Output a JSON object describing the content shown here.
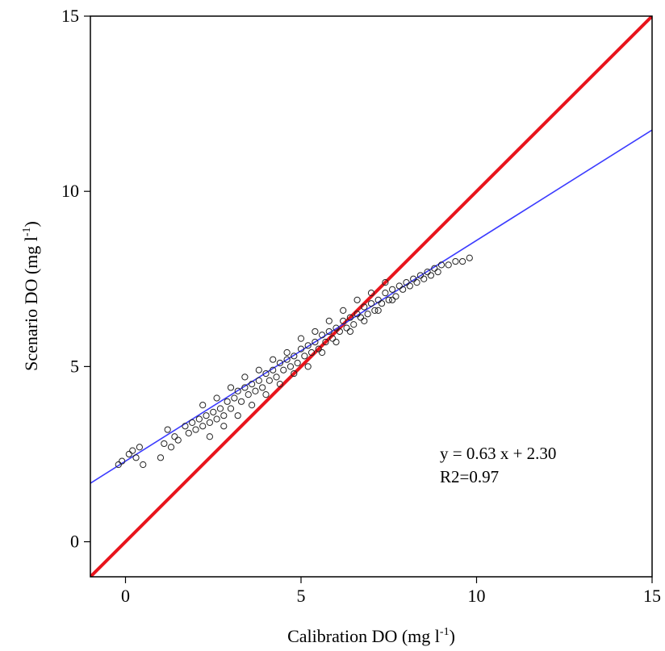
{
  "chart_data": {
    "type": "scatter",
    "title": "",
    "xlabel": {
      "base": "Calibration DO (mg l",
      "sup": "-1",
      "close": ")"
    },
    "ylabel": {
      "base": "Scenario DO (mg l",
      "sup": "-1",
      "close": ")"
    },
    "xlim": [
      -1,
      15
    ],
    "ylim": [
      -1,
      15
    ],
    "x_ticks": [
      0,
      5,
      10,
      15
    ],
    "y_ticks": [
      0,
      5,
      10,
      15
    ],
    "grid": false,
    "annotations": [
      "y = 0.63 x + 2.30",
      "R2=0.97"
    ],
    "lines": [
      {
        "label": "1:1 line",
        "color": "#e8141c",
        "x": [
          -1,
          15
        ],
        "y": [
          -1,
          15
        ]
      },
      {
        "label": "regression",
        "color": "#3b3bff",
        "x": [
          -1,
          15
        ],
        "y": [
          1.67,
          11.75
        ]
      }
    ],
    "points_color": "#222222",
    "points": [
      [
        -0.2,
        2.2
      ],
      [
        -0.1,
        2.3
      ],
      [
        0.1,
        2.5
      ],
      [
        0.2,
        2.6
      ],
      [
        0.3,
        2.4
      ],
      [
        0.4,
        2.7
      ],
      [
        0.5,
        2.2
      ],
      [
        1.0,
        2.4
      ],
      [
        1.1,
        2.8
      ],
      [
        1.2,
        3.2
      ],
      [
        1.3,
        2.7
      ],
      [
        1.4,
        3.0
      ],
      [
        1.5,
        2.9
      ],
      [
        1.7,
        3.3
      ],
      [
        1.8,
        3.1
      ],
      [
        1.9,
        3.4
      ],
      [
        2.0,
        3.2
      ],
      [
        2.1,
        3.5
      ],
      [
        2.2,
        3.3
      ],
      [
        2.3,
        3.6
      ],
      [
        2.4,
        3.4
      ],
      [
        2.5,
        3.7
      ],
      [
        2.6,
        3.5
      ],
      [
        2.7,
        3.8
      ],
      [
        2.8,
        3.6
      ],
      [
        2.9,
        4.0
      ],
      [
        3.0,
        3.8
      ],
      [
        3.1,
        4.1
      ],
      [
        3.2,
        4.3
      ],
      [
        3.3,
        4.0
      ],
      [
        3.4,
        4.4
      ],
      [
        3.5,
        4.2
      ],
      [
        3.6,
        4.5
      ],
      [
        3.7,
        4.3
      ],
      [
        3.8,
        4.6
      ],
      [
        3.9,
        4.4
      ],
      [
        4.0,
        4.8
      ],
      [
        4.1,
        4.6
      ],
      [
        4.2,
        4.9
      ],
      [
        4.3,
        4.7
      ],
      [
        4.4,
        5.1
      ],
      [
        4.5,
        4.9
      ],
      [
        4.6,
        5.2
      ],
      [
        4.7,
        5.0
      ],
      [
        4.8,
        5.3
      ],
      [
        4.9,
        5.1
      ],
      [
        5.0,
        5.5
      ],
      [
        5.1,
        5.3
      ],
      [
        5.2,
        5.6
      ],
      [
        5.3,
        5.4
      ],
      [
        5.4,
        5.7
      ],
      [
        5.5,
        5.5
      ],
      [
        5.6,
        5.9
      ],
      [
        5.7,
        5.7
      ],
      [
        5.8,
        6.0
      ],
      [
        5.9,
        5.8
      ],
      [
        6.0,
        6.1
      ],
      [
        6.1,
        6.0
      ],
      [
        6.2,
        6.3
      ],
      [
        6.3,
        6.1
      ],
      [
        6.4,
        6.4
      ],
      [
        6.5,
        6.2
      ],
      [
        6.6,
        6.5
      ],
      [
        6.7,
        6.4
      ],
      [
        6.8,
        6.7
      ],
      [
        6.9,
        6.5
      ],
      [
        7.0,
        6.8
      ],
      [
        7.1,
        6.6
      ],
      [
        7.2,
        6.9
      ],
      [
        7.3,
        6.8
      ],
      [
        7.4,
        7.1
      ],
      [
        7.5,
        6.9
      ],
      [
        7.6,
        7.2
      ],
      [
        7.7,
        7.0
      ],
      [
        7.8,
        7.3
      ],
      [
        7.9,
        7.2
      ],
      [
        8.0,
        7.4
      ],
      [
        8.1,
        7.3
      ],
      [
        8.2,
        7.5
      ],
      [
        8.3,
        7.4
      ],
      [
        8.4,
        7.6
      ],
      [
        8.5,
        7.5
      ],
      [
        8.6,
        7.7
      ],
      [
        8.7,
        7.6
      ],
      [
        8.8,
        7.8
      ],
      [
        8.9,
        7.7
      ],
      [
        9.0,
        7.9
      ],
      [
        9.2,
        7.9
      ],
      [
        9.4,
        8.0
      ],
      [
        9.6,
        8.0
      ],
      [
        9.8,
        8.1
      ],
      [
        2.2,
        3.9
      ],
      [
        2.6,
        4.1
      ],
      [
        3.0,
        4.4
      ],
      [
        3.4,
        4.7
      ],
      [
        3.8,
        4.9
      ],
      [
        4.2,
        5.2
      ],
      [
        4.6,
        5.4
      ],
      [
        5.0,
        5.8
      ],
      [
        5.4,
        6.0
      ],
      [
        5.8,
        6.3
      ],
      [
        6.2,
        6.6
      ],
      [
        6.6,
        6.9
      ],
      [
        7.0,
        7.1
      ],
      [
        7.4,
        7.4
      ],
      [
        2.4,
        3.0
      ],
      [
        2.8,
        3.3
      ],
      [
        3.2,
        3.6
      ],
      [
        3.6,
        3.9
      ],
      [
        4.0,
        4.2
      ],
      [
        4.4,
        4.5
      ],
      [
        4.8,
        4.8
      ],
      [
        5.2,
        5.0
      ],
      [
        5.6,
        5.4
      ],
      [
        6.0,
        5.7
      ],
      [
        6.4,
        6.0
      ],
      [
        6.8,
        6.3
      ],
      [
        7.2,
        6.6
      ],
      [
        7.6,
        6.9
      ]
    ]
  }
}
